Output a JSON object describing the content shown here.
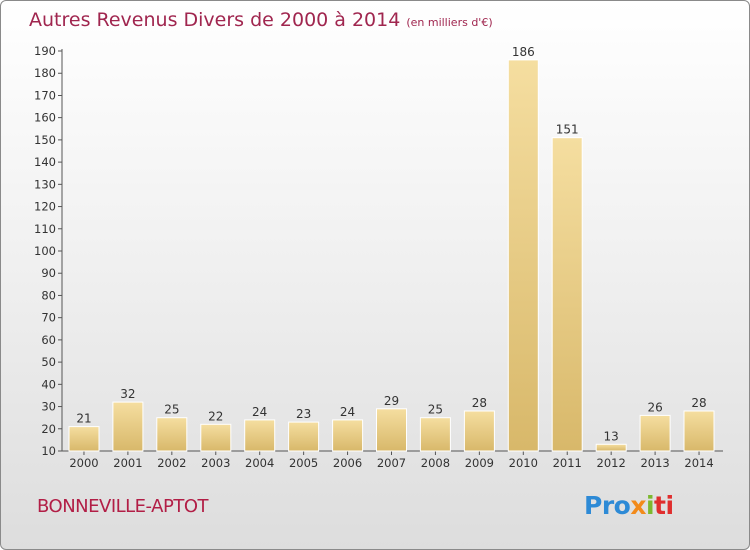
{
  "header": {
    "title": "Autres Revenus Divers de 2000 à 2014",
    "unit": "(en milliers d'€)"
  },
  "footer": {
    "commune": "BONNEVILLE-APTOT",
    "logo_parts": [
      "Pro",
      "x",
      "i",
      "ti"
    ]
  },
  "colors": {
    "title": "#a0264f",
    "bar_light": "#f5dea0",
    "bar_dark": "#d8b86a"
  },
  "chart_data": {
    "type": "bar",
    "title": "Autres Revenus Divers de 2000 à 2014",
    "subtitle": "(en milliers d'€)",
    "xlabel": "",
    "ylabel": "",
    "categories": [
      "2000",
      "2001",
      "2002",
      "2003",
      "2004",
      "2005",
      "2006",
      "2007",
      "2008",
      "2009",
      "2010",
      "2011",
      "2012",
      "2013",
      "2014"
    ],
    "values": [
      21,
      32,
      25,
      22,
      24,
      23,
      24,
      29,
      25,
      28,
      186,
      151,
      13,
      26,
      28
    ],
    "ylim": [
      10,
      190
    ],
    "yticks": [
      10,
      20,
      30,
      40,
      50,
      60,
      70,
      80,
      90,
      100,
      110,
      120,
      130,
      140,
      150,
      160,
      170,
      180,
      190
    ],
    "grid": false,
    "legend": "none"
  }
}
